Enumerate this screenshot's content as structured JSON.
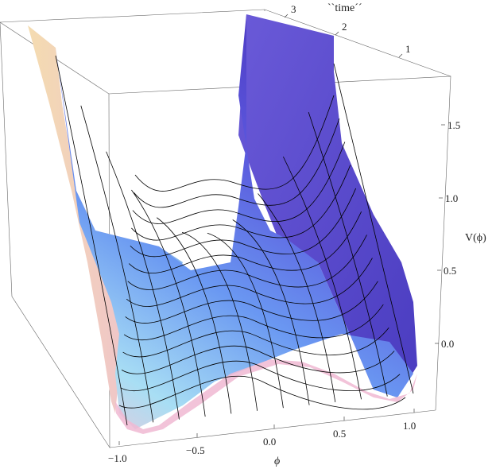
{
  "chart_data": {
    "type": "surface",
    "xlabel": "ϕ",
    "ylabel": "``time´´",
    "zlabel": "V(ϕ)",
    "x_ticks": [
      "−1.0",
      "−0.5",
      "0.0",
      "0.5",
      "1.0"
    ],
    "y_ticks": [
      "1",
      "2",
      "3"
    ],
    "z_ticks": [
      "0.0",
      "0.5",
      "1.0",
      "1.5"
    ],
    "xlim": [
      -1.1,
      1.1
    ],
    "ylim": [
      0,
      3.5
    ],
    "zlim": [
      -0.2,
      1.8
    ],
    "colors": {
      "surface_front": "#9fd8f2",
      "surface_mid": "#5a86f0",
      "surface_back": "#5440d0",
      "surface_rim": "#f0b4d0",
      "left_edge": "#f2dcae"
    }
  }
}
